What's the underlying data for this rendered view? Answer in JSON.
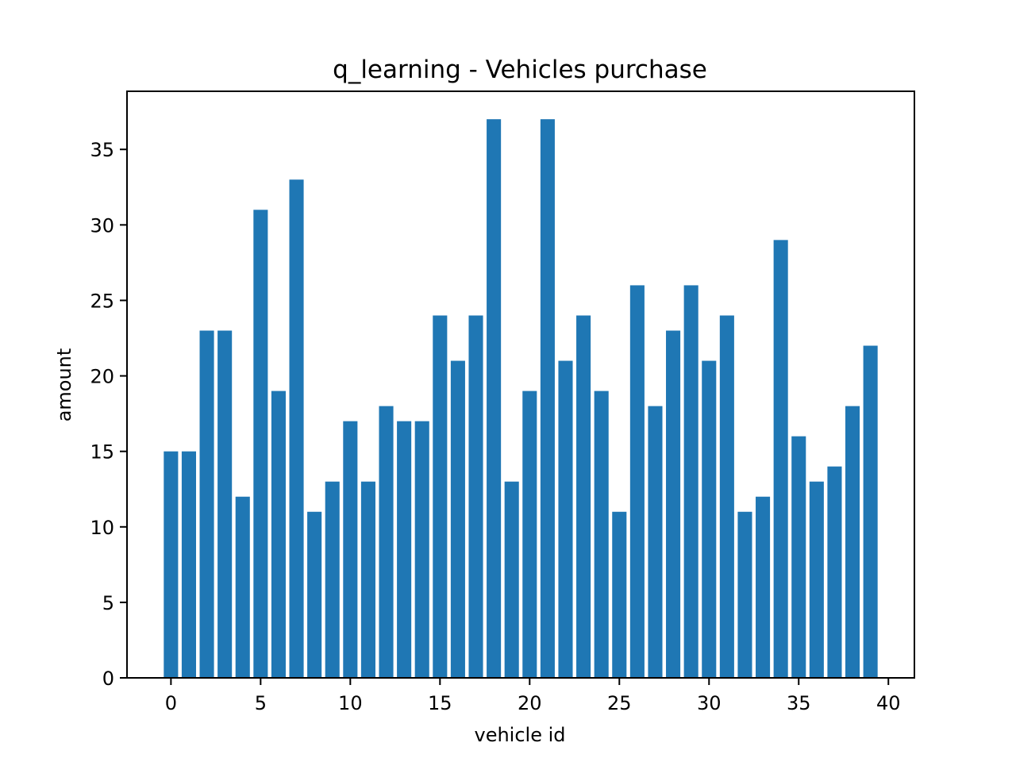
{
  "chart_data": {
    "type": "bar",
    "title": "q_learning - Vehicles purchase",
    "xlabel": "vehicle id",
    "ylabel": "amount",
    "x": [
      0,
      1,
      2,
      3,
      4,
      5,
      6,
      7,
      8,
      9,
      10,
      11,
      12,
      13,
      14,
      15,
      16,
      17,
      18,
      19,
      20,
      21,
      22,
      23,
      24,
      25,
      26,
      27,
      28,
      29,
      30,
      31,
      32,
      33,
      34,
      35,
      36,
      37,
      38,
      39
    ],
    "values": [
      15,
      15,
      23,
      23,
      12,
      31,
      19,
      33,
      11,
      13,
      17,
      13,
      18,
      17,
      17,
      24,
      21,
      24,
      37,
      13,
      19,
      37,
      21,
      24,
      19,
      11,
      26,
      18,
      23,
      26,
      21,
      24,
      11,
      12,
      29,
      16,
      13,
      14,
      18,
      22
    ],
    "xlim": [
      -2.45,
      41.45
    ],
    "ylim": [
      0,
      38.85
    ],
    "xticks": [
      "0",
      "5",
      "10",
      "15",
      "20",
      "25",
      "30",
      "35",
      "40"
    ],
    "yticks": [
      "0",
      "5",
      "10",
      "15",
      "20",
      "25",
      "30",
      "35"
    ],
    "bar_color": "#1f77b4",
    "grid": false,
    "legend": "none"
  }
}
